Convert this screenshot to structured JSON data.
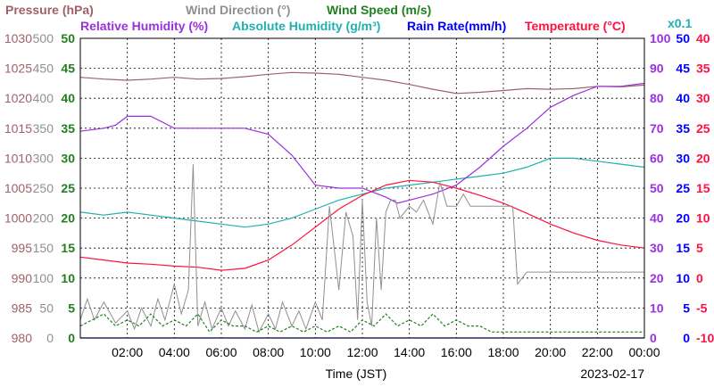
{
  "chart_data": {
    "type": "line",
    "xlabel": "Time (JST)",
    "date": "2023-02-17",
    "x_ticks": [
      "02:00",
      "04:00",
      "06:00",
      "08:00",
      "10:00",
      "12:00",
      "14:00",
      "16:00",
      "18:00",
      "20:00",
      "22:00",
      "00:00"
    ],
    "x_range_hours": [
      0,
      24
    ],
    "grid": true,
    "legend_titles": [
      {
        "id": "pressure",
        "text": "Pressure (hPa)",
        "color": "#a0606a"
      },
      {
        "id": "wind_dir",
        "text": "Wind Direction (°)",
        "color": "#909090"
      },
      {
        "id": "wind_speed",
        "text": "Wind Speed (m/s)",
        "color": "#208020"
      },
      {
        "id": "rel_hum",
        "text": "Relative Humidity (%)",
        "color": "#9a30e0"
      },
      {
        "id": "abs_hum",
        "text": "Absolute Humidity (g/m³)",
        "color": "#20b0b0"
      },
      {
        "id": "rain",
        "text": "Rain Rate(mm/h)",
        "color": "#0000ff"
      },
      {
        "id": "temp",
        "text": "Temperature (°C)",
        "color": "#ff1040"
      },
      {
        "id": "abs_scale",
        "text": "x0.1",
        "color": "#20b0b0"
      }
    ],
    "axes": {
      "pressure": {
        "ticks": [
          "980",
          "985",
          "990",
          "995",
          "1000",
          "1005",
          "1010",
          "1015",
          "1020",
          "1025",
          "1030"
        ],
        "range": [
          980,
          1030
        ],
        "color": "#a0606a"
      },
      "wind_dir": {
        "ticks": [
          "0",
          "50",
          "100",
          "150",
          "200",
          "250",
          "300",
          "350",
          "400",
          "450",
          "500"
        ],
        "range": [
          0,
          500
        ],
        "color": "#909090"
      },
      "wind_speed": {
        "ticks": [
          "0",
          "5",
          "10",
          "15",
          "20",
          "25",
          "30",
          "35",
          "40",
          "45",
          "50"
        ],
        "range": [
          0,
          50
        ],
        "color": "#208020"
      },
      "rel_hum": {
        "ticks": [
          "0",
          "10",
          "20",
          "30",
          "40",
          "50",
          "60",
          "70",
          "80",
          "90",
          "100"
        ],
        "range": [
          0,
          100
        ],
        "color": "#9a30e0"
      },
      "rain": {
        "ticks": [
          "0",
          "5",
          "10",
          "15",
          "20",
          "25",
          "30",
          "35",
          "40",
          "45",
          "50"
        ],
        "range": [
          0,
          50
        ],
        "color": "#0000ff"
      },
      "temp": {
        "ticks": [
          "-10",
          "-5",
          "0",
          "5",
          "10",
          "15",
          "20",
          "25",
          "30",
          "35",
          "40"
        ],
        "range": [
          -10,
          40
        ],
        "color": "#ff1040"
      }
    },
    "series": [
      {
        "id": "pressure",
        "axis": "pressure",
        "color": "#a0606a",
        "x": [
          0,
          1,
          2,
          3,
          4,
          5,
          6,
          7,
          8,
          9,
          10,
          11,
          12,
          13,
          14,
          15,
          16,
          17,
          18,
          19,
          20,
          21,
          22,
          23,
          24
        ],
        "values": [
          1023.5,
          1023.2,
          1023.0,
          1023.2,
          1023.5,
          1023.2,
          1023.3,
          1023.6,
          1024.0,
          1024.3,
          1024.2,
          1024.0,
          1023.5,
          1023.0,
          1022.3,
          1021.5,
          1020.8,
          1021.0,
          1021.3,
          1021.6,
          1021.5,
          1021.6,
          1022.0,
          1021.9,
          1022.2
        ]
      },
      {
        "id": "abs_hum",
        "axis": "rel_hum",
        "color": "#20b0b0",
        "x": [
          0,
          1,
          2,
          3,
          4,
          5,
          6,
          7,
          8,
          9,
          10,
          11,
          12,
          13,
          14,
          15,
          16,
          17,
          18,
          19,
          20,
          21,
          22,
          23,
          24
        ],
        "values": [
          42,
          41,
          42,
          41,
          40,
          39,
          38,
          37,
          38,
          40,
          43,
          46,
          48,
          50,
          51,
          52,
          53,
          54,
          55,
          57,
          60,
          60,
          59,
          58,
          57
        ]
      },
      {
        "id": "rel_hum",
        "axis": "rel_hum",
        "color": "#9a30e0",
        "x": [
          0,
          1,
          1.5,
          2,
          3,
          4,
          5,
          6,
          7,
          8,
          9,
          10,
          11,
          12,
          13,
          13.5,
          14,
          15,
          16,
          17,
          18,
          19,
          20,
          21,
          22,
          23,
          24
        ],
        "values": [
          69,
          70,
          71,
          74,
          74,
          70,
          70,
          70,
          70,
          68,
          61,
          51,
          50,
          50,
          47,
          45,
          46,
          48,
          51,
          57,
          64,
          70,
          77,
          81,
          84,
          84,
          85
        ]
      },
      {
        "id": "temp",
        "axis": "temp",
        "color": "#ff1040",
        "x": [
          0,
          1,
          2,
          3,
          4,
          5,
          6,
          7,
          8,
          9,
          10,
          11,
          12,
          13,
          14,
          15,
          16,
          17,
          18,
          19,
          20,
          21,
          22,
          23,
          24
        ],
        "values": [
          3.5,
          3.0,
          2.5,
          2.3,
          2.0,
          1.8,
          1.3,
          1.6,
          3.0,
          5.5,
          8.5,
          11.5,
          13.8,
          15.5,
          16.3,
          16.0,
          15.0,
          13.8,
          12.5,
          10.8,
          9.0,
          7.5,
          6.3,
          5.5,
          5.0
        ]
      },
      {
        "id": "wind_dir",
        "axis": "wind_dir",
        "color": "#909090",
        "x": [
          0,
          0.3,
          0.6,
          1,
          1.5,
          2,
          2.3,
          2.6,
          3,
          3.3,
          3.6,
          4,
          4.3,
          4.6,
          4.8,
          5,
          5.3,
          5.6,
          6,
          6.3,
          6.6,
          7,
          7.3,
          7.6,
          8,
          8.3,
          8.6,
          9,
          9.3,
          9.6,
          10,
          10.3,
          10.6,
          11,
          11.3,
          11.6,
          11.8,
          12,
          12.2,
          12.4,
          12.6,
          12.8,
          13,
          13.2,
          13.4,
          13.6,
          13.8,
          14,
          14.3,
          14.6,
          15,
          15.3,
          15.6,
          16,
          16.3,
          16.6,
          17,
          17.5,
          18,
          18.4,
          18.6,
          19,
          20,
          21,
          22,
          23,
          24
        ],
        "values": [
          30,
          65,
          30,
          60,
          25,
          45,
          15,
          50,
          20,
          65,
          30,
          90,
          40,
          80,
          290,
          20,
          60,
          15,
          50,
          20,
          45,
          15,
          55,
          10,
          40,
          15,
          60,
          20,
          45,
          15,
          60,
          30,
          220,
          80,
          210,
          170,
          30,
          230,
          60,
          20,
          200,
          80,
          210,
          230,
          230,
          200,
          210,
          220,
          210,
          230,
          190,
          260,
          220,
          220,
          240,
          220,
          220,
          220,
          220,
          220,
          90,
          110,
          110,
          110,
          110,
          110,
          110
        ]
      },
      {
        "id": "wind_speed",
        "axis": "wind_speed",
        "color": "#208020",
        "x": [
          0,
          0.5,
          1,
          1.5,
          2,
          2.5,
          3,
          3.5,
          4,
          4.5,
          5,
          5.5,
          6,
          6.5,
          7,
          7.5,
          8,
          8.5,
          9,
          9.5,
          10,
          10.5,
          11,
          11.5,
          12,
          12.5,
          13,
          13.5,
          14,
          14.5,
          15,
          15.5,
          16,
          16.5,
          17,
          17.5,
          18,
          18.5,
          19,
          19.5,
          20,
          20.5,
          21,
          21.5,
          22,
          22.5,
          23,
          23.5,
          24
        ],
        "values": [
          2,
          3,
          4,
          2,
          3,
          2,
          4,
          2,
          3,
          2,
          4,
          1,
          3,
          2,
          2,
          1,
          2,
          1,
          2,
          1,
          2,
          1,
          2,
          1,
          3,
          2,
          4,
          2,
          3,
          2,
          4,
          2,
          3,
          2,
          2,
          1,
          1,
          1,
          1,
          1,
          1,
          1,
          1,
          1,
          1,
          1,
          1,
          1,
          1
        ]
      },
      {
        "id": "rain",
        "axis": "rain",
        "color": "#0000ff",
        "x": [
          0,
          24
        ],
        "values": [
          0,
          0
        ]
      }
    ]
  }
}
